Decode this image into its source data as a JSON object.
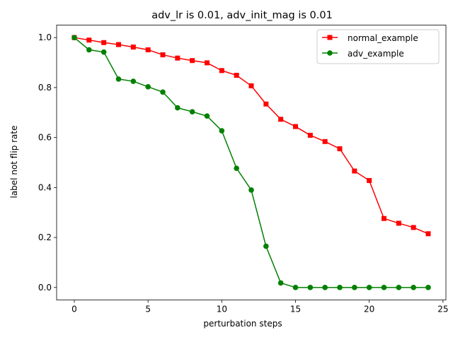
{
  "chart_data": {
    "type": "line",
    "title": "adv_lr is 0.01, adv_init_mag is 0.01",
    "xlabel": "perturbation steps",
    "ylabel": "label not flip rate",
    "xlim": [
      -1.2,
      25.2
    ],
    "ylim": [
      -0.05,
      1.05
    ],
    "xticks": [
      0,
      5,
      10,
      15,
      20,
      25
    ],
    "yticks": [
      0.0,
      0.2,
      0.4,
      0.6,
      0.8,
      1.0
    ],
    "xtick_labels": [
      "0",
      "5",
      "10",
      "15",
      "20",
      "25"
    ],
    "ytick_labels": [
      "0.0",
      "0.2",
      "0.4",
      "0.6",
      "0.8",
      "1.0"
    ],
    "grid": false,
    "legend_position": "top-right",
    "x": [
      0,
      1,
      2,
      3,
      4,
      5,
      6,
      7,
      8,
      9,
      10,
      11,
      12,
      13,
      14,
      15,
      16,
      17,
      18,
      19,
      20,
      21,
      22,
      23,
      24
    ],
    "series": [
      {
        "name": "normal_example",
        "color": "#ff0000",
        "marker": "square",
        "values": [
          1.0,
          0.99,
          0.98,
          0.972,
          0.962,
          0.951,
          0.931,
          0.918,
          0.908,
          0.899,
          0.868,
          0.849,
          0.807,
          0.734,
          0.673,
          0.644,
          0.609,
          0.584,
          0.555,
          0.466,
          0.428,
          0.276,
          0.257,
          0.24,
          0.215
        ]
      },
      {
        "name": "adv_example",
        "color": "#008000",
        "marker": "circle",
        "values": [
          1.0,
          0.951,
          0.942,
          0.834,
          0.825,
          0.803,
          0.782,
          0.719,
          0.703,
          0.686,
          0.627,
          0.477,
          0.39,
          0.165,
          0.018,
          0.0,
          0.0,
          0.0,
          0.0,
          0.0,
          0.0,
          0.0,
          0.0,
          0.0,
          0.0
        ]
      }
    ]
  }
}
